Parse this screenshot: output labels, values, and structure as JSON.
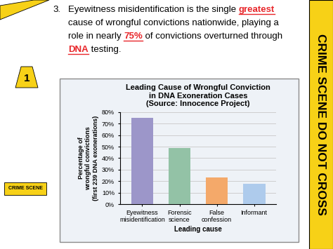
{
  "slide": {
    "number": "3.",
    "statement": [
      [
        {
          "text": "Eyewitness misidentification is the single "
        },
        {
          "text": "greatest",
          "color": "#e8262a",
          "bold": true,
          "underline": true
        }
      ],
      [
        {
          "text": "cause of wrongful convictions nationwide, playing a"
        }
      ],
      [
        {
          "text": "role in nearly "
        },
        {
          "text": "75%",
          "color": "#e8262a",
          "bold": true,
          "underline": true
        },
        {
          "text": " of convictions overturned through"
        }
      ],
      [
        {
          "text": "DNA",
          "color": "#e8262a",
          "bold": true,
          "underline": true
        },
        {
          "text": " testing."
        }
      ]
    ],
    "tape": "CRIME SCENE DO NOT CROSS",
    "marker": "1",
    "badge": "CRIME SCENE"
  },
  "chart_data": {
    "type": "bar",
    "title": "Leading Cause of Wrongful Conviction\nin DNA Exoneration Cases\n(Source: Innocence Project)",
    "x_label": "Leading cause",
    "y_label": "Percentage of\nwrongful convictions\n(first 239 DNA exonerations)",
    "categories": [
      "Eyewitness\nmisidentification",
      "Forensic\nscience",
      "False\nconfession",
      "Informant"
    ],
    "values": [
      75,
      49,
      23,
      18
    ],
    "colors": [
      "#9c96c9",
      "#93c2a6",
      "#f4a96a",
      "#aecbec"
    ],
    "ylim": [
      0,
      80
    ],
    "yticks": [
      {
        "value": 0,
        "label": "0%"
      },
      {
        "value": 10,
        "label": "10%"
      },
      {
        "value": 20,
        "label": "20%"
      },
      {
        "value": 30,
        "label": "30%"
      },
      {
        "value": 40,
        "label": "40%"
      },
      {
        "value": 50,
        "label": "50%"
      },
      {
        "value": 60,
        "label": "60%"
      },
      {
        "value": 70,
        "label": "70%"
      },
      {
        "value": 80,
        "label": "80%"
      }
    ],
    "grid": true
  }
}
